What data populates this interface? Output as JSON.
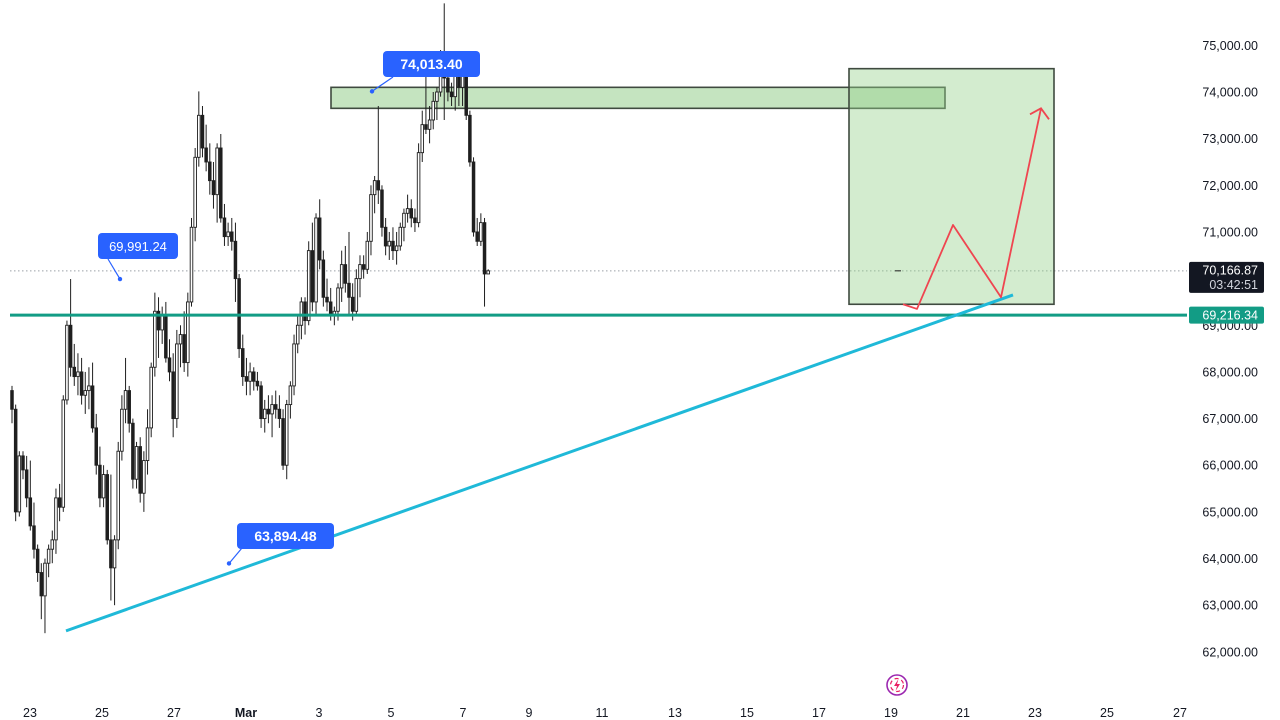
{
  "chart_data": {
    "type": "candlestick",
    "x_tick_labels": [
      "23",
      "25",
      "27",
      "Mar",
      "3",
      "5",
      "7",
      "9",
      "11",
      "13",
      "15",
      "17",
      "19",
      "21",
      "23",
      "25",
      "27"
    ],
    "y_tick_labels": [
      "62,000.00",
      "63,000.00",
      "64,000.00",
      "65,000.00",
      "66,000.00",
      "67,000.00",
      "68,000.00",
      "69,000.00",
      "70,000.00",
      "71,000.00",
      "72,000.00",
      "73,000.00",
      "74,000.00",
      "75,000.00"
    ],
    "y_ticks": [
      62000,
      63000,
      64000,
      65000,
      66000,
      67000,
      68000,
      69000,
      70000,
      71000,
      72000,
      73000,
      74000,
      75000
    ],
    "ylim": [
      61300,
      75900
    ],
    "current_price": {
      "value": 70166.87,
      "label": "70,166.87",
      "countdown": "03:42:51"
    },
    "support_level": {
      "value": 69216.34,
      "label": "69,216.34"
    },
    "annotations": [
      {
        "label": "74,013.40",
        "price": 74013.4
      },
      {
        "label": "69,991.24",
        "price": 69991.24
      },
      {
        "label": "63,894.48",
        "price": 63894.48
      }
    ],
    "zones": [
      {
        "kind": "resistance-zone",
        "price_low": 73650,
        "price_high": 74100
      },
      {
        "kind": "target-box",
        "price_low": 69450,
        "price_high": 74500
      }
    ],
    "trendline": {
      "from_price": 62450,
      "to_price": 69650
    },
    "projection_path_prices": [
      69450,
      69350,
      71150,
      69600,
      73650
    ],
    "candles": [
      [
        67600,
        67700,
        66900,
        67200
      ],
      [
        67200,
        67300,
        64800,
        65000
      ],
      [
        65000,
        66300,
        64900,
        66200
      ],
      [
        66200,
        66300,
        65700,
        65900
      ],
      [
        65900,
        66200,
        65100,
        65300
      ],
      [
        65300,
        66100,
        64600,
        64700
      ],
      [
        64700,
        65200,
        64000,
        64200
      ],
      [
        64200,
        64300,
        63500,
        63700
      ],
      [
        63700,
        63900,
        62700,
        63200
      ],
      [
        63200,
        64000,
        62400,
        63900
      ],
      [
        63900,
        64300,
        63600,
        64200
      ],
      [
        64200,
        64600,
        63900,
        64400
      ],
      [
        64400,
        65500,
        64100,
        65300
      ],
      [
        65300,
        65600,
        64800,
        65100
      ],
      [
        65100,
        67500,
        65000,
        67400
      ],
      [
        67400,
        69100,
        67300,
        69000
      ],
      [
        69000,
        69991,
        67900,
        68100
      ],
      [
        68100,
        68600,
        67700,
        67900
      ],
      [
        67900,
        68400,
        67500,
        68000
      ],
      [
        68000,
        68300,
        67300,
        67500
      ],
      [
        67500,
        68000,
        67100,
        67600
      ],
      [
        67600,
        68100,
        67200,
        67700
      ],
      [
        67700,
        68200,
        66700,
        66800
      ],
      [
        66800,
        67100,
        65800,
        66000
      ],
      [
        66000,
        66400,
        65100,
        65300
      ],
      [
        65300,
        66000,
        65100,
        65800
      ],
      [
        65800,
        65900,
        64300,
        64400
      ],
      [
        64400,
        65800,
        63100,
        63800
      ],
      [
        63800,
        64500,
        63000,
        64400
      ],
      [
        64400,
        66500,
        64200,
        66300
      ],
      [
        66300,
        67500,
        66100,
        67200
      ],
      [
        67200,
        68300,
        66900,
        67600
      ],
      [
        67600,
        67700,
        66700,
        66900
      ],
      [
        66900,
        67000,
        65500,
        65700
      ],
      [
        65700,
        66500,
        65500,
        66400
      ],
      [
        66400,
        66600,
        65200,
        65400
      ],
      [
        65400,
        66300,
        65000,
        66100
      ],
      [
        66100,
        67200,
        65800,
        66800
      ],
      [
        66800,
        68200,
        66600,
        68100
      ],
      [
        68100,
        69700,
        67900,
        69300
      ],
      [
        69300,
        69600,
        68300,
        68900
      ],
      [
        68900,
        69400,
        68600,
        69200
      ],
      [
        69200,
        69500,
        68200,
        68300
      ],
      [
        68300,
        68700,
        67800,
        68000
      ],
      [
        68000,
        68400,
        66600,
        67000
      ],
      [
        67000,
        68900,
        66800,
        68600
      ],
      [
        68600,
        69000,
        68100,
        68800
      ],
      [
        68800,
        69300,
        68000,
        68200
      ],
      [
        68200,
        69700,
        67900,
        69500
      ],
      [
        69500,
        71300,
        69400,
        71100
      ],
      [
        71100,
        72800,
        70800,
        72600
      ],
      [
        72600,
        74013,
        72400,
        73500
      ],
      [
        73500,
        73700,
        72600,
        72800
      ],
      [
        72800,
        73300,
        72300,
        72500
      ],
      [
        72500,
        72900,
        71800,
        72100
      ],
      [
        72100,
        72500,
        71500,
        71800
      ],
      [
        71800,
        72900,
        71200,
        72800
      ],
      [
        72800,
        73100,
        71200,
        71300
      ],
      [
        71300,
        71600,
        70700,
        70900
      ],
      [
        70900,
        71200,
        70700,
        71000
      ],
      [
        71000,
        71300,
        70600,
        70800
      ],
      [
        70800,
        71200,
        69500,
        70000
      ],
      [
        70000,
        70100,
        68300,
        68500
      ],
      [
        68500,
        68800,
        67700,
        67900
      ],
      [
        67900,
        68300,
        67500,
        67800
      ],
      [
        67800,
        68200,
        67500,
        68000
      ],
      [
        68000,
        68100,
        67600,
        67800
      ],
      [
        67800,
        68000,
        67600,
        67700
      ],
      [
        67700,
        67800,
        66800,
        67000
      ],
      [
        67000,
        67400,
        66700,
        67200
      ],
      [
        67200,
        67500,
        66900,
        67100
      ],
      [
        67100,
        67500,
        66600,
        67300
      ],
      [
        67300,
        67600,
        67000,
        67200
      ],
      [
        67200,
        67500,
        66800,
        67000
      ],
      [
        67000,
        67200,
        65900,
        66000
      ],
      [
        66000,
        67400,
        65700,
        67300
      ],
      [
        67300,
        67800,
        67000,
        67700
      ],
      [
        67700,
        68800,
        67500,
        68600
      ],
      [
        68600,
        69200,
        68400,
        69000
      ],
      [
        69000,
        69600,
        68700,
        69500
      ],
      [
        69500,
        69600,
        68800,
        69100
      ],
      [
        69100,
        70800,
        69000,
        70600
      ],
      [
        70600,
        71200,
        69300,
        69500
      ],
      [
        69500,
        71400,
        69200,
        71300
      ],
      [
        71300,
        71700,
        70200,
        70400
      ],
      [
        70400,
        70600,
        69400,
        69600
      ],
      [
        69600,
        70000,
        69300,
        69500
      ],
      [
        69500,
        69800,
        69100,
        69200
      ],
      [
        69200,
        69400,
        69000,
        69300
      ],
      [
        69300,
        69900,
        69100,
        69800
      ],
      [
        69800,
        70600,
        69500,
        70300
      ],
      [
        70300,
        70700,
        69700,
        69900
      ],
      [
        69900,
        71000,
        69200,
        69600
      ],
      [
        69600,
        69900,
        69100,
        69300
      ],
      [
        69300,
        70200,
        69200,
        70000
      ],
      [
        70000,
        70500,
        69600,
        70300
      ],
      [
        70300,
        70500,
        70000,
        70200
      ],
      [
        70200,
        71000,
        70100,
        70800
      ],
      [
        70800,
        72000,
        70500,
        71800
      ],
      [
        71800,
        72200,
        71400,
        72100
      ],
      [
        72100,
        73700,
        71600,
        71900
      ],
      [
        71900,
        72000,
        70900,
        71100
      ],
      [
        71100,
        71300,
        70500,
        70700
      ],
      [
        70700,
        71000,
        70400,
        70800
      ],
      [
        70800,
        71100,
        70400,
        70600
      ],
      [
        70600,
        71000,
        70300,
        70700
      ],
      [
        70700,
        71200,
        70600,
        71100
      ],
      [
        71100,
        71500,
        70800,
        71400
      ],
      [
        71400,
        71800,
        71200,
        71500
      ],
      [
        71500,
        71700,
        71100,
        71300
      ],
      [
        71300,
        71500,
        71000,
        71200
      ],
      [
        71200,
        72900,
        71100,
        72700
      ],
      [
        72700,
        73600,
        72500,
        73300
      ],
      [
        73300,
        74400,
        73100,
        73200
      ],
      [
        73200,
        73700,
        72900,
        73400
      ],
      [
        73400,
        74000,
        73200,
        73800
      ],
      [
        73800,
        74100,
        73400,
        74000
      ],
      [
        74000,
        74900,
        73900,
        74600
      ],
      [
        74600,
        75900,
        73400,
        74300
      ],
      [
        74300,
        74500,
        73800,
        74000
      ],
      [
        74000,
        74200,
        73700,
        73900
      ],
      [
        73900,
        74800,
        73600,
        74400
      ],
      [
        74400,
        74500,
        73700,
        74100
      ],
      [
        74100,
        74700,
        73700,
        74500
      ],
      [
        74500,
        74600,
        73400,
        73500
      ],
      [
        73500,
        73600,
        72400,
        72500
      ],
      [
        72500,
        72600,
        70900,
        71000
      ],
      [
        71000,
        71300,
        70700,
        70800
      ],
      [
        70800,
        71400,
        70700,
        71200
      ],
      [
        71200,
        71300,
        69400,
        70100
      ],
      [
        70100,
        70200,
        70100,
        70167
      ]
    ]
  }
}
